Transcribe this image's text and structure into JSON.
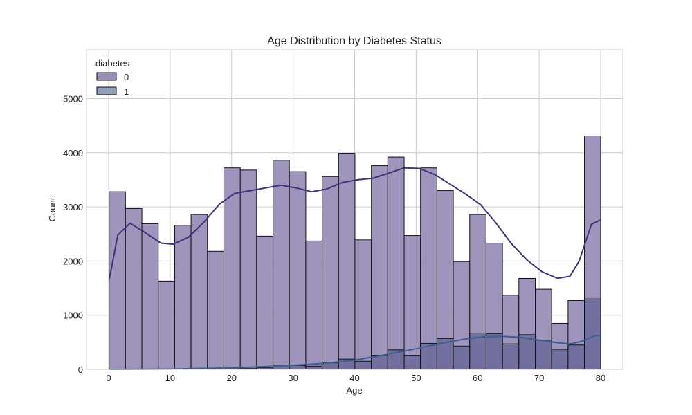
{
  "chart_data": {
    "type": "histogram",
    "title": "Age Distribution by Diabetes Status",
    "xlabel": "Age",
    "ylabel": "Count",
    "xlim": [
      -3.6,
      83.6
    ],
    "ylim": [
      0,
      5900
    ],
    "xticks": [
      0,
      10,
      20,
      30,
      40,
      50,
      60,
      70,
      80
    ],
    "yticks": [
      0,
      1000,
      2000,
      3000,
      4000,
      5000
    ],
    "grid": true,
    "bin_edges": [
      0.08,
      2.74,
      5.41,
      8.07,
      10.74,
      13.4,
      16.07,
      18.73,
      21.4,
      24.06,
      26.73,
      29.39,
      32.06,
      34.72,
      37.39,
      40.05,
      42.72,
      45.38,
      48.05,
      50.71,
      53.38,
      56.04,
      58.71,
      61.37,
      64.04,
      66.7,
      69.37,
      72.03,
      74.7,
      77.36,
      80.0
    ],
    "legend": {
      "title": "diabetes",
      "position": "top-left"
    },
    "series": [
      {
        "name": "0",
        "color": "#9a8fb8",
        "line_color": "#3e3376",
        "values": [
          3280,
          2970,
          2690,
          1630,
          2660,
          2860,
          2180,
          3720,
          3680,
          2460,
          3860,
          3650,
          2370,
          3560,
          3990,
          2390,
          3760,
          3920,
          2470,
          3720,
          3300,
          1990,
          2860,
          2330,
          1370,
          1680,
          1480,
          850,
          1270,
          4310
        ],
        "kde": [
          [
            0.08,
            1650
          ],
          [
            1.5,
            2480
          ],
          [
            3.5,
            2700
          ],
          [
            6,
            2520
          ],
          [
            8.5,
            2330
          ],
          [
            10.5,
            2310
          ],
          [
            13,
            2440
          ],
          [
            15.5,
            2720
          ],
          [
            18,
            3050
          ],
          [
            20.5,
            3250
          ],
          [
            23,
            3300
          ],
          [
            25.5,
            3350
          ],
          [
            28,
            3400
          ],
          [
            30.5,
            3350
          ],
          [
            33,
            3280
          ],
          [
            35.5,
            3330
          ],
          [
            38,
            3450
          ],
          [
            40.5,
            3500
          ],
          [
            43,
            3530
          ],
          [
            45.5,
            3620
          ],
          [
            48,
            3720
          ],
          [
            50.5,
            3710
          ],
          [
            53,
            3600
          ],
          [
            55.5,
            3420
          ],
          [
            58,
            3240
          ],
          [
            60.5,
            3040
          ],
          [
            63,
            2700
          ],
          [
            65.5,
            2320
          ],
          [
            68,
            2020
          ],
          [
            70.5,
            1800
          ],
          [
            73,
            1680
          ],
          [
            75,
            1720
          ],
          [
            76.5,
            2000
          ],
          [
            78.5,
            2680
          ],
          [
            80,
            2760
          ]
        ]
      },
      {
        "name": "1",
        "color": "#6b6b9a",
        "line_color": "#3d5e8f",
        "values": [
          0,
          0,
          0,
          0,
          0,
          5,
          10,
          10,
          15,
          30,
          80,
          70,
          60,
          120,
          190,
          150,
          260,
          360,
          260,
          480,
          570,
          430,
          670,
          660,
          470,
          640,
          540,
          370,
          450,
          1300
        ],
        "kde": [
          [
            0.08,
            0
          ],
          [
            10,
            5
          ],
          [
            20,
            30
          ],
          [
            25,
            50
          ],
          [
            30,
            75
          ],
          [
            35,
            110
          ],
          [
            40,
            170
          ],
          [
            45,
            270
          ],
          [
            50,
            380
          ],
          [
            55,
            500
          ],
          [
            58,
            560
          ],
          [
            61,
            600
          ],
          [
            64,
            610
          ],
          [
            67,
            590
          ],
          [
            70,
            540
          ],
          [
            73,
            490
          ],
          [
            75,
            470
          ],
          [
            77,
            520
          ],
          [
            79,
            620
          ],
          [
            80,
            630
          ]
        ]
      }
    ]
  }
}
